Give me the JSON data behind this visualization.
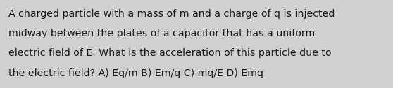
{
  "lines": [
    "A charged particle with a mass of m and a charge of q is injected",
    "midway between the plates of a capacitor that has a uniform",
    "electric field of E. What is the acceleration of this particle due to",
    "the electric field? A) Eq/m B) Em/q C) mq/E D) Emq"
  ],
  "bg_color": "#d0d0d0",
  "text_color": "#1a1a1a",
  "font_size": 10.2,
  "fig_width": 5.58,
  "fig_height": 1.26,
  "dpi": 100
}
